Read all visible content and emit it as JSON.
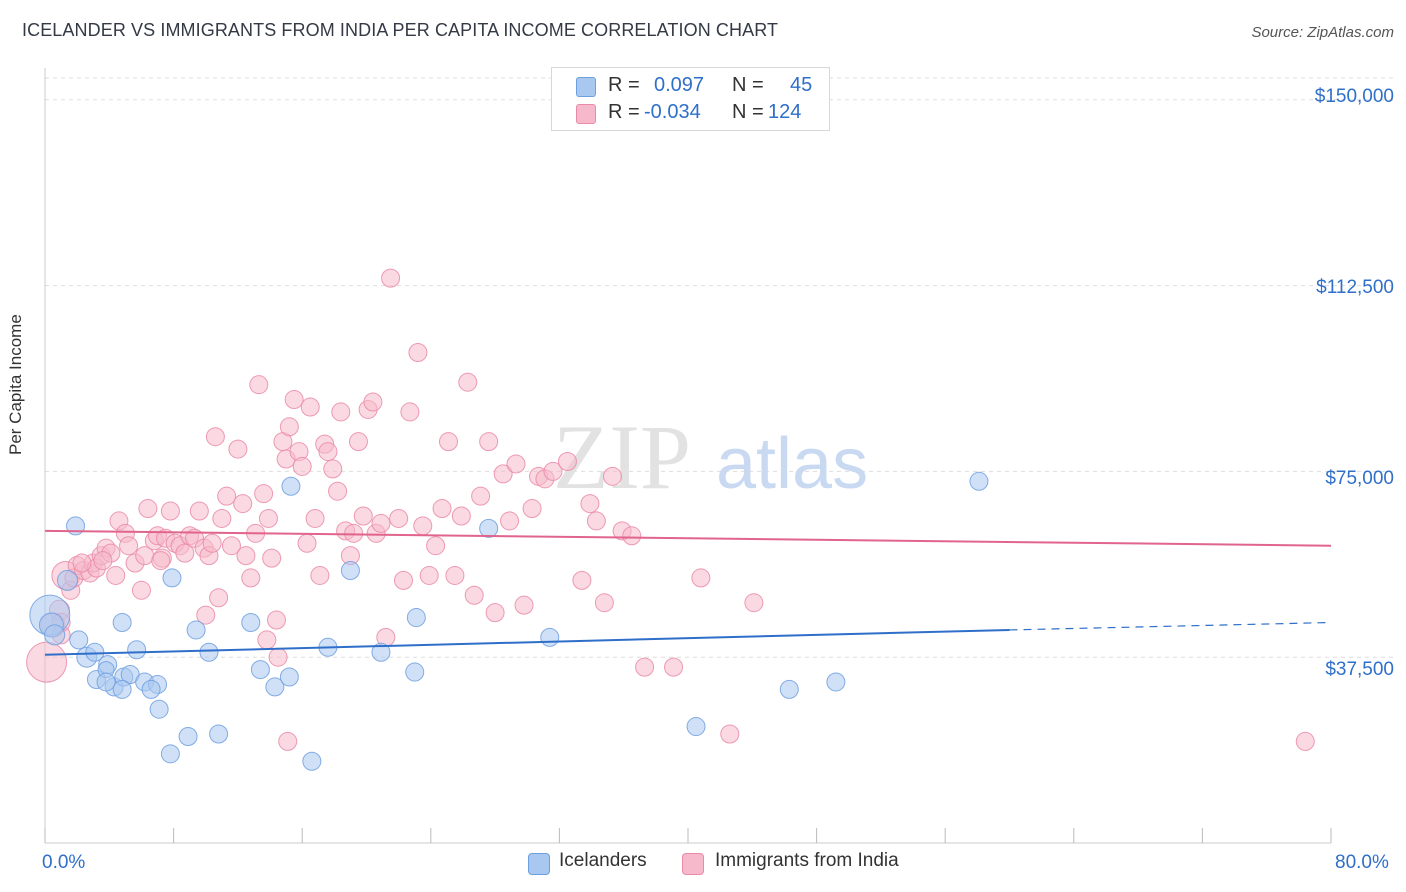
{
  "title": "ICELANDER VS IMMIGRANTS FROM INDIA PER CAPITA INCOME CORRELATION CHART",
  "source": "Source: ZipAtlas.com",
  "watermark": {
    "zip": "ZIP",
    "atlas": "atlas"
  },
  "colors": {
    "blue_fill": "#a9c8f0",
    "blue_stroke": "#6e9fe0",
    "blue_line": "#2f6fc9",
    "pink_fill": "#f6b9cb",
    "pink_stroke": "#ea8aa8",
    "pink_line": "#e0648c",
    "axis_text": "#2f6fc9",
    "grid": "#dddddd"
  },
  "legend": {
    "rows": [
      {
        "r_label": "R =",
        "r_value": "0.097",
        "n_label": "N =",
        "n_value": "45"
      },
      {
        "r_label": "R =",
        "r_value": "-0.034",
        "n_label": "N =",
        "n_value": "124"
      }
    ]
  },
  "bottom_legend": {
    "blue": "Icelanders",
    "pink": "Immigrants from India"
  },
  "chart_data": {
    "type": "scatter",
    "title": "ICELANDER VS IMMIGRANTS FROM INDIA PER CAPITA INCOME CORRELATION CHART",
    "xlabel": "",
    "ylabel": "Per Capita Income",
    "xlim": [
      0,
      80
    ],
    "ylim": [
      0,
      155000
    ],
    "x_tick_labels": [
      "0.0%",
      "80.0%"
    ],
    "y_ticks": [
      37500,
      75000,
      112500,
      150000
    ],
    "y_tick_labels": [
      "$37,500",
      "$75,000",
      "$112,500",
      "$150,000"
    ],
    "series": [
      {
        "name": "Icelanders",
        "color": "blue",
        "r": 0.097,
        "n": 45,
        "trend": {
          "x0": 0,
          "y0": 38000,
          "x1": 60,
          "y1": 43000,
          "dash_to_x": 80,
          "dash_to_y": 44500
        },
        "points": [
          [
            0.3,
            46000,
            20
          ],
          [
            0.4,
            44000,
            12
          ],
          [
            0.6,
            42000,
            10
          ],
          [
            1.4,
            53000,
            10
          ],
          [
            1.9,
            64000,
            9
          ],
          [
            2.1,
            41000,
            9
          ],
          [
            2.6,
            37500,
            10
          ],
          [
            3.1,
            38500,
            9
          ],
          [
            3.2,
            33000,
            9
          ],
          [
            3.9,
            36000,
            9
          ],
          [
            3.8,
            35000,
            8
          ],
          [
            4.3,
            31500,
            9
          ],
          [
            4.9,
            33500,
            9
          ],
          [
            4.8,
            44500,
            9
          ],
          [
            5.3,
            34000,
            9
          ],
          [
            5.7,
            39000,
            9
          ],
          [
            6.2,
            32500,
            9
          ],
          [
            7.0,
            32000,
            9
          ],
          [
            7.1,
            27000,
            9
          ],
          [
            7.8,
            18000,
            9
          ],
          [
            7.9,
            53500,
            9
          ],
          [
            8.9,
            21500,
            9
          ],
          [
            9.4,
            43000,
            9
          ],
          [
            10.2,
            38500,
            9
          ],
          [
            10.8,
            22000,
            9
          ],
          [
            12.8,
            44500,
            9
          ],
          [
            13.4,
            35000,
            9
          ],
          [
            14.3,
            31500,
            9
          ],
          [
            15.2,
            33500,
            9
          ],
          [
            16.6,
            16500,
            9
          ],
          [
            17.6,
            39500,
            9
          ],
          [
            19.0,
            55000,
            9
          ],
          [
            20.9,
            38500,
            9
          ],
          [
            23.0,
            34500,
            9
          ],
          [
            23.1,
            45500,
            9
          ],
          [
            27.6,
            63500,
            9
          ],
          [
            31.4,
            41500,
            9
          ],
          [
            40.5,
            23500,
            9
          ],
          [
            46.3,
            31000,
            9
          ],
          [
            49.2,
            32500,
            9
          ],
          [
            58.1,
            73000,
            9
          ],
          [
            15.3,
            72000,
            9
          ],
          [
            4.8,
            31000,
            9
          ],
          [
            3.8,
            32500,
            9
          ],
          [
            6.6,
            31000,
            9
          ]
        ]
      },
      {
        "name": "Immigrants from India",
        "color": "pink",
        "r": -0.034,
        "n": 124,
        "trend": {
          "x0": 0,
          "y0": 63000,
          "x1": 80,
          "y1": 60000
        },
        "points": [
          [
            0.1,
            36500,
            20
          ],
          [
            0.5,
            44000,
            12
          ],
          [
            0.9,
            47000,
            10
          ],
          [
            1.0,
            42000,
            9
          ],
          [
            1.3,
            54000,
            14
          ],
          [
            1.6,
            51000,
            9
          ],
          [
            1.8,
            53500,
            9
          ],
          [
            2.0,
            56000,
            9
          ],
          [
            2.4,
            55000,
            9
          ],
          [
            2.8,
            54500,
            9
          ],
          [
            3.0,
            56500,
            9
          ],
          [
            3.2,
            55500,
            9
          ],
          [
            3.5,
            58000,
            9
          ],
          [
            3.8,
            59500,
            9
          ],
          [
            4.1,
            58500,
            9
          ],
          [
            4.4,
            54000,
            9
          ],
          [
            4.6,
            65000,
            9
          ],
          [
            5.0,
            62500,
            9
          ],
          [
            5.2,
            60000,
            9
          ],
          [
            5.6,
            56500,
            9
          ],
          [
            6.0,
            51000,
            9
          ],
          [
            6.2,
            58000,
            9
          ],
          [
            6.4,
            67500,
            9
          ],
          [
            6.8,
            61000,
            9
          ],
          [
            7.0,
            62000,
            9
          ],
          [
            7.3,
            57500,
            9
          ],
          [
            7.5,
            61500,
            9
          ],
          [
            7.8,
            67000,
            9
          ],
          [
            8.1,
            60500,
            9
          ],
          [
            8.4,
            60000,
            9
          ],
          [
            8.7,
            58500,
            9
          ],
          [
            9.0,
            62000,
            9
          ],
          [
            9.3,
            61500,
            9
          ],
          [
            9.6,
            67000,
            9
          ],
          [
            9.9,
            59500,
            9
          ],
          [
            10.0,
            46000,
            9
          ],
          [
            10.2,
            58000,
            9
          ],
          [
            10.4,
            60500,
            9
          ],
          [
            10.6,
            82000,
            9
          ],
          [
            10.8,
            49500,
            9
          ],
          [
            11.0,
            65500,
            9
          ],
          [
            11.3,
            70000,
            9
          ],
          [
            11.6,
            60000,
            9
          ],
          [
            12.0,
            79500,
            9
          ],
          [
            12.3,
            68500,
            9
          ],
          [
            12.5,
            58000,
            9
          ],
          [
            12.8,
            53500,
            9
          ],
          [
            13.1,
            62500,
            9
          ],
          [
            13.3,
            92500,
            9
          ],
          [
            13.6,
            70500,
            9
          ],
          [
            13.9,
            65500,
            9
          ],
          [
            14.1,
            57500,
            9
          ],
          [
            14.4,
            45000,
            9
          ],
          [
            14.8,
            81000,
            9
          ],
          [
            15.0,
            77500,
            9
          ],
          [
            15.2,
            84000,
            9
          ],
          [
            15.5,
            89500,
            9
          ],
          [
            15.8,
            79000,
            9
          ],
          [
            16.0,
            76000,
            9
          ],
          [
            16.3,
            60500,
            9
          ],
          [
            16.5,
            88000,
            9
          ],
          [
            16.8,
            65500,
            9
          ],
          [
            17.1,
            54000,
            9
          ],
          [
            17.4,
            80500,
            9
          ],
          [
            17.6,
            79000,
            9
          ],
          [
            17.9,
            75500,
            9
          ],
          [
            18.2,
            71000,
            9
          ],
          [
            18.4,
            87000,
            9
          ],
          [
            18.7,
            63000,
            9
          ],
          [
            19.0,
            58000,
            9
          ],
          [
            19.2,
            62500,
            9
          ],
          [
            19.5,
            81000,
            9
          ],
          [
            19.8,
            66000,
            9
          ],
          [
            20.1,
            87500,
            9
          ],
          [
            20.4,
            89000,
            9
          ],
          [
            20.6,
            62500,
            9
          ],
          [
            20.9,
            64500,
            9
          ],
          [
            21.2,
            41500,
            9
          ],
          [
            21.5,
            114000,
            9
          ],
          [
            22.0,
            65500,
            9
          ],
          [
            22.3,
            53000,
            9
          ],
          [
            22.7,
            87000,
            9
          ],
          [
            23.2,
            99000,
            9
          ],
          [
            23.5,
            64000,
            9
          ],
          [
            23.9,
            54000,
            9
          ],
          [
            24.3,
            60000,
            9
          ],
          [
            24.7,
            67500,
            9
          ],
          [
            25.1,
            81000,
            9
          ],
          [
            25.5,
            54000,
            9
          ],
          [
            25.9,
            66000,
            9
          ],
          [
            26.3,
            93000,
            9
          ],
          [
            26.7,
            50000,
            9
          ],
          [
            27.1,
            70000,
            9
          ],
          [
            27.6,
            81000,
            9
          ],
          [
            28.0,
            46500,
            9
          ],
          [
            28.5,
            74500,
            9
          ],
          [
            28.9,
            65000,
            9
          ],
          [
            29.3,
            76500,
            9
          ],
          [
            29.8,
            48000,
            9
          ],
          [
            30.3,
            67500,
            9
          ],
          [
            30.7,
            74000,
            9
          ],
          [
            31.1,
            73500,
            9
          ],
          [
            31.6,
            75000,
            9
          ],
          [
            32.5,
            77000,
            9
          ],
          [
            33.4,
            53000,
            9
          ],
          [
            33.9,
            68500,
            9
          ],
          [
            34.3,
            65000,
            9
          ],
          [
            34.8,
            48500,
            9
          ],
          [
            35.3,
            74000,
            9
          ],
          [
            35.9,
            63000,
            9
          ],
          [
            36.5,
            62000,
            9
          ],
          [
            37.3,
            35500,
            9
          ],
          [
            39.1,
            35500,
            9
          ],
          [
            40.8,
            53500,
            9
          ],
          [
            42.6,
            22000,
            9
          ],
          [
            44.1,
            48500,
            9
          ],
          [
            13.8,
            41000,
            9
          ],
          [
            14.5,
            37500,
            9
          ],
          [
            15.1,
            20500,
            9
          ],
          [
            78.4,
            20500,
            9
          ],
          [
            1.0,
            44500,
            9
          ],
          [
            2.3,
            56500,
            9
          ],
          [
            7.2,
            57000,
            9
          ],
          [
            3.6,
            57000,
            9
          ]
        ]
      }
    ]
  }
}
